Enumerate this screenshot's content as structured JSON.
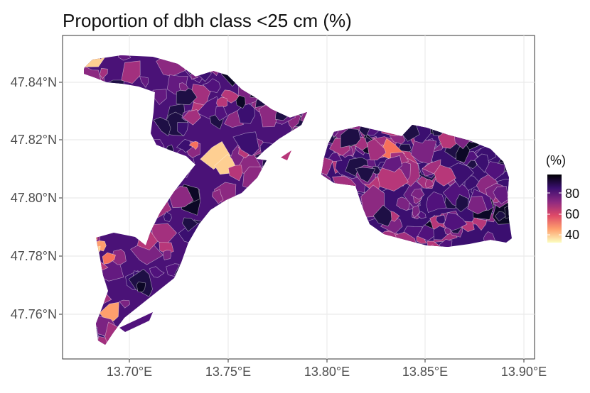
{
  "map": {
    "title": "Proportion of dbh class <25 cm (%)",
    "x_axis": {
      "ticks": [
        "13.70°E",
        "13.75°E",
        "13.80°E",
        "13.85°E",
        "13.90°E"
      ],
      "range": [
        13.665,
        13.905
      ]
    },
    "y_axis": {
      "ticks": [
        "47.76°N",
        "47.78°N",
        "47.80°N",
        "47.82°N",
        "47.84°N"
      ],
      "range": [
        47.748,
        47.853
      ]
    },
    "grid": true,
    "legend": {
      "title": "(%)",
      "placement": "right",
      "labels": [
        "80",
        "60",
        "40"
      ],
      "colors": [
        "#fcfdbf",
        "#fe9f6d",
        "#de4968",
        "#8c2981",
        "#3b0f70",
        "#000004"
      ]
    },
    "fill_palette": [
      "#0c0826",
      "#1e0f45",
      "#3b0f70",
      "#51127c",
      "#641a80",
      "#7b2382",
      "#8c2981",
      "#a3307e",
      "#b73779",
      "#de4968",
      "#f7705c",
      "#fe9f6d",
      "#fecf92"
    ]
  }
}
